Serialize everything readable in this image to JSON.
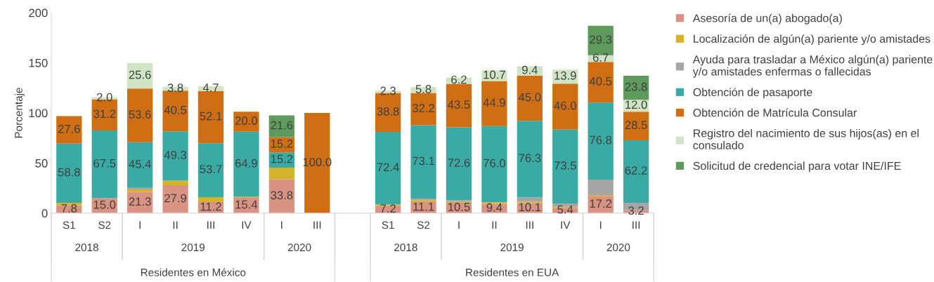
{
  "chart_data": {
    "type": "bar",
    "stacked": true,
    "ylabel": "Porcentaje",
    "categories": [
      "S1",
      "S2",
      "I",
      "II",
      "III",
      "IV",
      "I",
      "III",
      null,
      "S1",
      "S2",
      "I",
      "II",
      "III",
      "IV",
      "I",
      "III"
    ],
    "annotations": [
      "2018",
      "2019",
      "2020",
      "2018",
      "2019",
      "2020",
      "Residentes en México",
      "Residentes en EUA"
    ],
    "ylim": [
      0,
      200
    ],
    "yticks": [
      0,
      50,
      100,
      150,
      200
    ],
    "grid": false,
    "legend": "right",
    "series": [
      {
        "name": "Asesoría de un(a) abogado(a)",
        "color": "#da9283",
        "values": [
          7.8,
          15.0,
          21.3,
          27.9,
          11.2,
          15.4,
          33.8,
          0,
          null,
          7.2,
          11.1,
          10.5,
          9.4,
          10.1,
          5.4,
          17.2,
          3.2
        ],
        "value_labels": [
          "7.8",
          "15.0",
          "21.3",
          "27.9",
          "11.2",
          "15.4",
          "33.8",
          null,
          null,
          "7.2",
          "11.1",
          "10.5",
          "9.4",
          "10.1",
          "5.4",
          "17.2",
          "3.2"
        ]
      },
      {
        "name": "Localización de algún(a) pariente y/o amistades",
        "color": "#d5b42c",
        "values": [
          2.7,
          null,
          2.5,
          4.5,
          4.9,
          1.0,
          11.7,
          0,
          null,
          1.5,
          2.0,
          1.0,
          1.5,
          1.6,
          1.0,
          1.0,
          0
        ],
        "value_labels": [
          null,
          null,
          null,
          null,
          null,
          null,
          null,
          null,
          null,
          null,
          null,
          null,
          null,
          null,
          null,
          null,
          null
        ]
      },
      {
        "name": "Ayuda para trasladar a México algún(a) pariente\ny/o amistades enfermas o fallecidas",
        "color": "#a6a6a6",
        "values": [
          0,
          null,
          1.5,
          0,
          0,
          0,
          0,
          0,
          null,
          0,
          1.5,
          1.5,
          null,
          4.2,
          3.4,
          15.4,
          7.3
        ],
        "value_labels": [
          null,
          null,
          null,
          null,
          null,
          null,
          null,
          null,
          null,
          null,
          null,
          null,
          null,
          null,
          null,
          null,
          null
        ]
      },
      {
        "name": "Obtención de pasaporte",
        "color": "#3aaaa5",
        "values": [
          58.8,
          67.5,
          45.4,
          49.3,
          53.7,
          64.9,
          15.2,
          0,
          null,
          72.4,
          73.1,
          72.6,
          76.0,
          76.3,
          73.5,
          76.8,
          62.2
        ],
        "value_labels": [
          "58.8",
          "67.5",
          "45.4",
          "49.3",
          "53.7",
          "64.9",
          "15.2",
          null,
          null,
          "72.4",
          "73.1",
          "72.6",
          "76.0",
          "76.3",
          "73.5",
          "76.8",
          "62.2"
        ]
      },
      {
        "name": "Obtención de Matrícula Consular",
        "color": "#cf6e13",
        "values": [
          27.6,
          31.2,
          53.6,
          40.5,
          52.1,
          20.0,
          15.2,
          100.0,
          null,
          38.8,
          32.2,
          43.5,
          44.9,
          45.0,
          46.0,
          40.5,
          28.5
        ],
        "value_labels": [
          "27.6",
          "31.2",
          "53.6",
          "40.5",
          "52.1",
          "20.0",
          "15.2",
          "100.0",
          null,
          "38.8",
          "32.2",
          "43.5",
          "44.9",
          "45.0",
          "46.0",
          "40.5",
          "28.5"
        ]
      },
      {
        "name": "Registro del nacimiento de sus hijos(as) en el\nconsulado",
        "color": "#cfe5c5",
        "values": [
          0,
          2.0,
          25.6,
          3.8,
          4.7,
          0,
          0,
          0,
          null,
          2.3,
          5.8,
          6.2,
          10.7,
          9.4,
          13.9,
          6.7,
          12.0
        ],
        "value_labels": [
          null,
          "2.0",
          "25.6",
          "3.8",
          "4.7",
          null,
          null,
          null,
          null,
          "2.3",
          "5.8",
          "6.2",
          "10.7",
          "9.4",
          "13.9",
          "6.7",
          "12.0"
        ]
      },
      {
        "name": "Solicitud de credencial para votar INE/IFE",
        "color": "#5f9a5d",
        "values": [
          0,
          0,
          0,
          0,
          0,
          0,
          21.6,
          0,
          null,
          0,
          0,
          0,
          0,
          0,
          0,
          29.3,
          23.8
        ],
        "value_labels": [
          null,
          null,
          null,
          null,
          null,
          null,
          "21.6",
          null,
          null,
          null,
          null,
          null,
          null,
          null,
          null,
          "29.3",
          "23.8"
        ]
      }
    ]
  }
}
